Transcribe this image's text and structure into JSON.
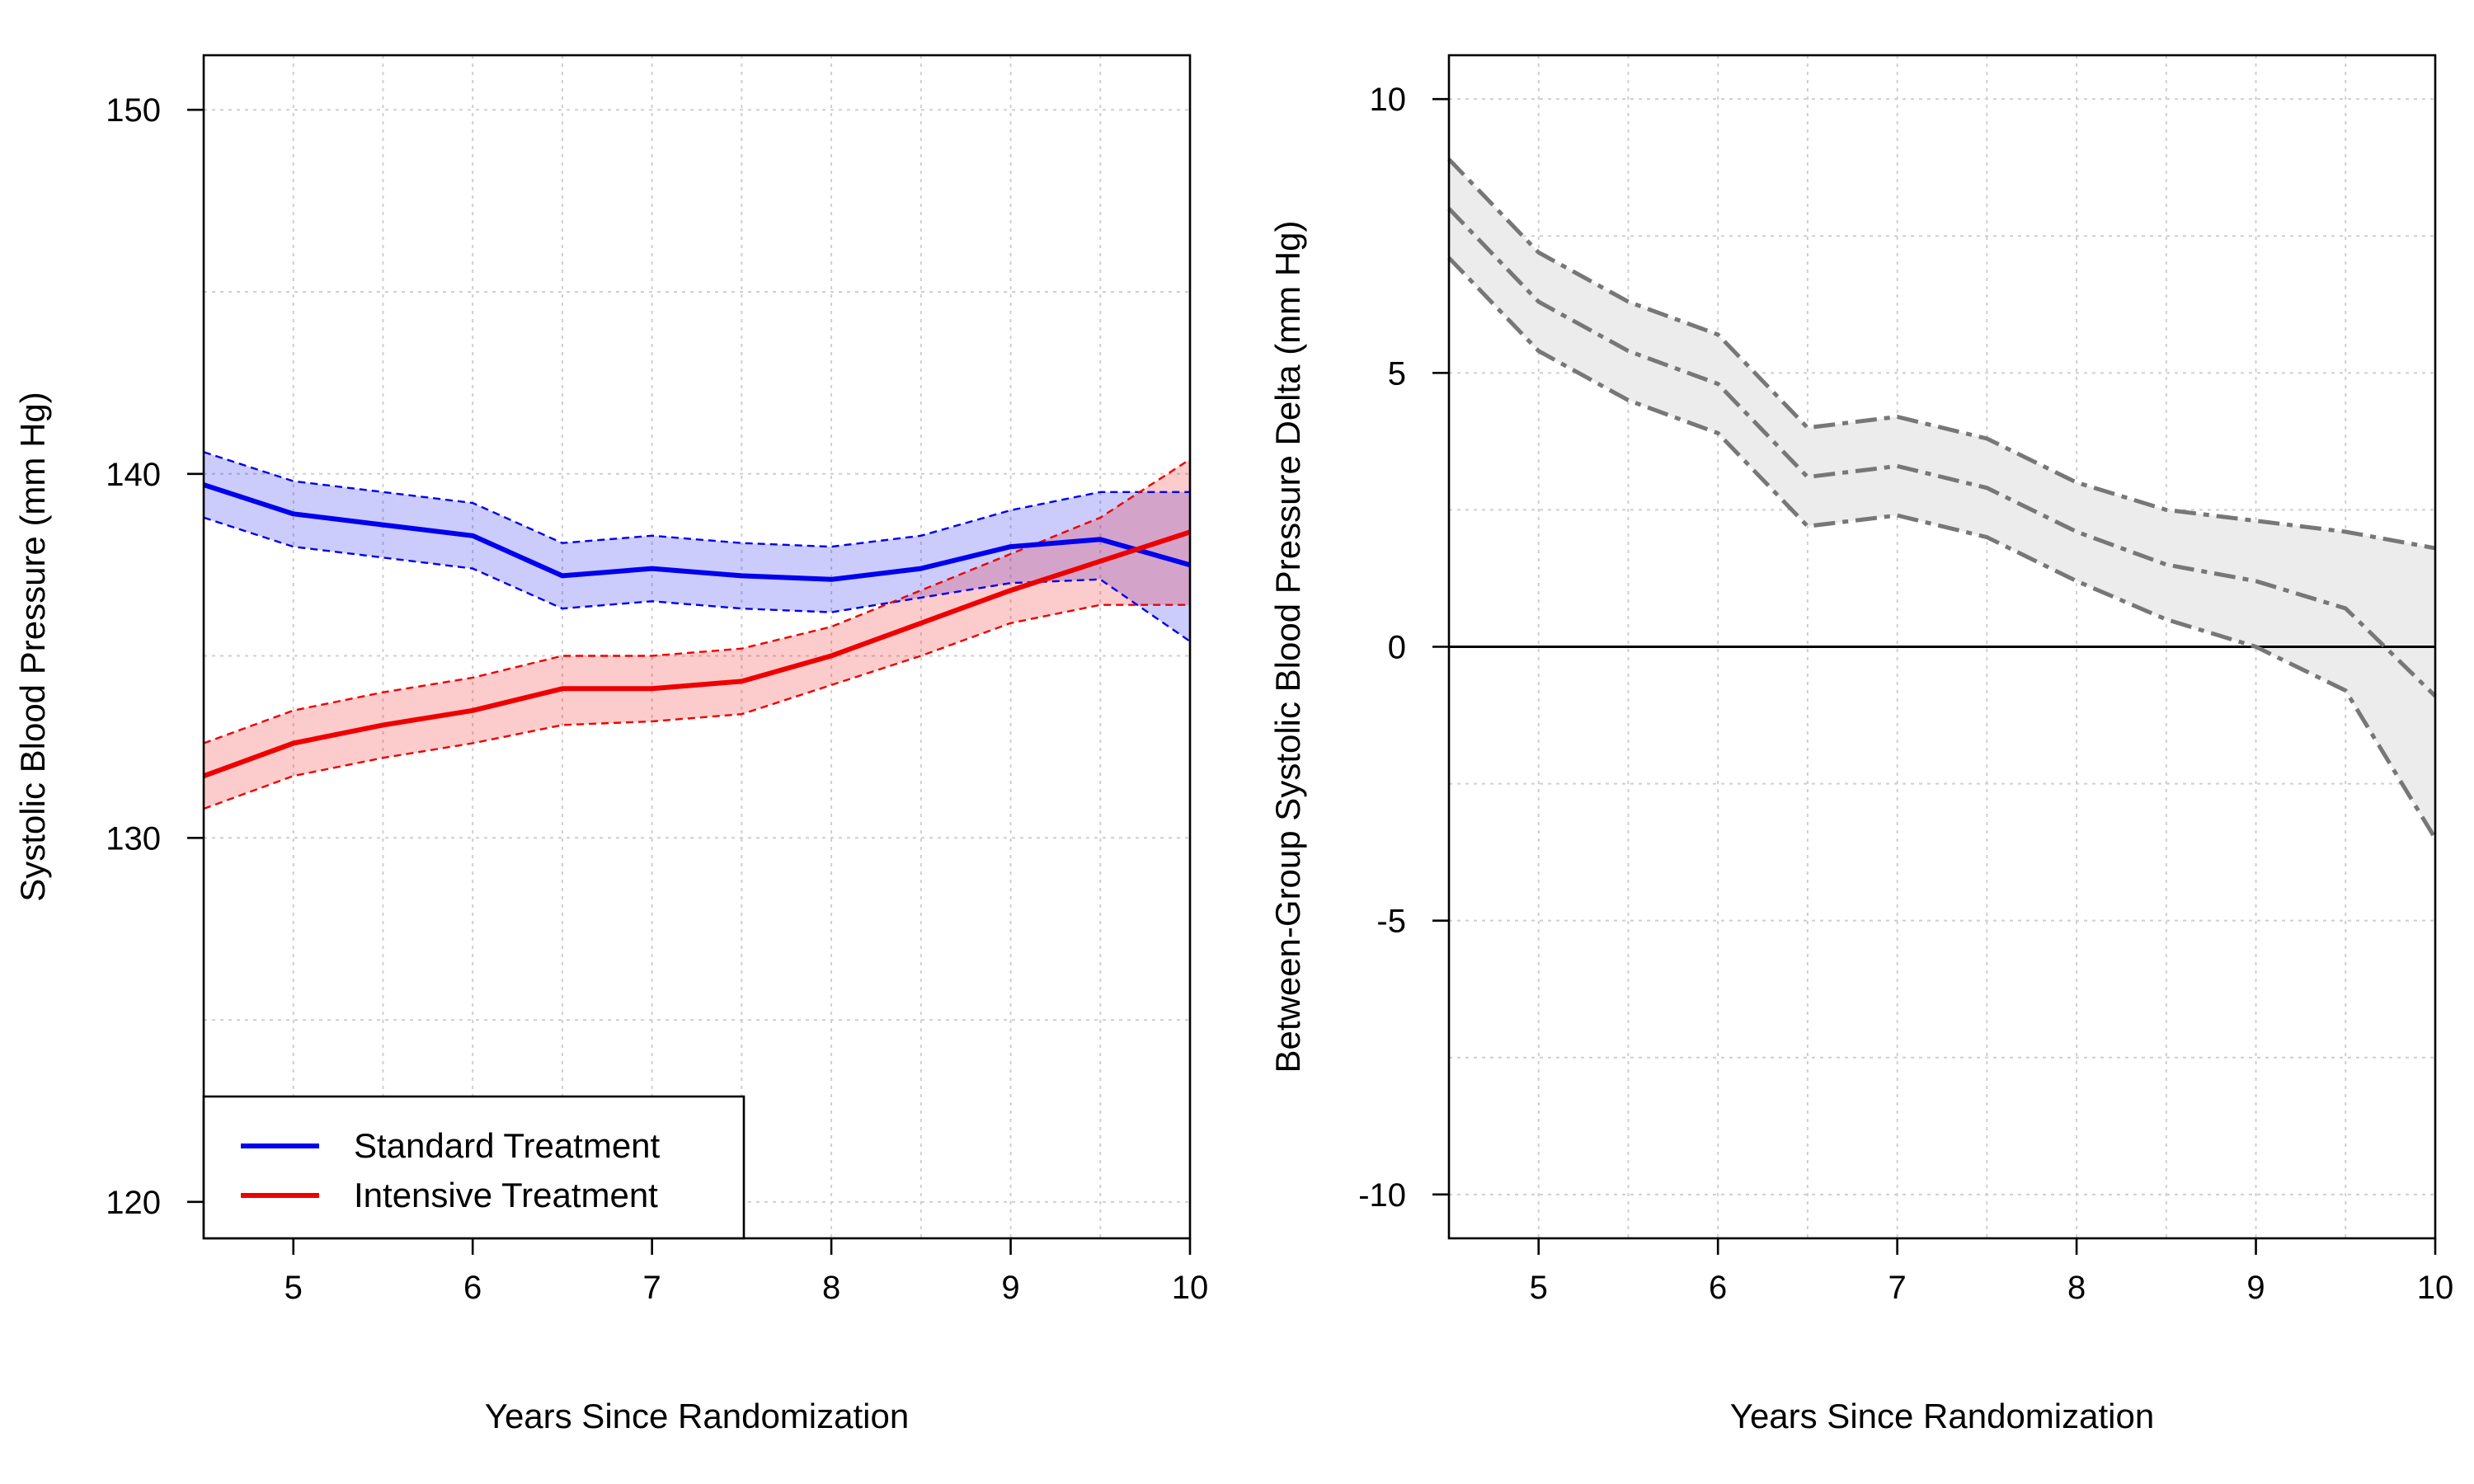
{
  "chart_data": [
    {
      "type": "line",
      "xlabel": "Years Since Randomization",
      "ylabel": "Systolic Blood Pressure (mm Hg)",
      "xlim": [
        4.5,
        10
      ],
      "ylim": [
        119,
        151.5
      ],
      "xticks": [
        5,
        6,
        7,
        8,
        9,
        10
      ],
      "xtick_labels": [
        "5",
        "6",
        "7",
        "8",
        "9",
        "10"
      ],
      "yticks": [
        120,
        130,
        140,
        150
      ],
      "ytick_labels": [
        "120",
        "130",
        "140",
        "150"
      ],
      "grid": true,
      "legend_position": "bottom-left",
      "x": [
        4.5,
        5.0,
        5.5,
        6.0,
        6.5,
        7.0,
        7.5,
        8.0,
        8.5,
        9.0,
        9.5,
        10.0
      ],
      "series": [
        {
          "name": "Standard Treatment",
          "color": "#0000ee",
          "band_color": "#c8c8f8",
          "values": [
            139.7,
            138.9,
            138.6,
            138.3,
            137.2,
            137.4,
            137.2,
            137.1,
            137.4,
            138.0,
            138.2,
            137.5
          ],
          "lower": [
            138.8,
            138.0,
            137.7,
            137.4,
            136.3,
            136.5,
            136.3,
            136.2,
            136.6,
            137.0,
            137.1,
            135.4
          ],
          "upper": [
            140.6,
            139.8,
            139.5,
            139.2,
            138.1,
            138.3,
            138.1,
            138.0,
            138.3,
            139.0,
            139.5,
            139.5
          ]
        },
        {
          "name": "Intensive Treatment",
          "color": "#ee0000",
          "band_color": "#f8c8c8",
          "values": [
            131.7,
            132.6,
            133.1,
            133.5,
            134.1,
            134.1,
            134.3,
            135.0,
            135.9,
            136.8,
            137.6,
            138.4
          ],
          "lower": [
            130.8,
            131.7,
            132.2,
            132.6,
            133.1,
            133.2,
            133.4,
            134.2,
            135.0,
            135.9,
            136.4,
            136.4
          ],
          "upper": [
            132.6,
            133.5,
            134.0,
            134.4,
            135.0,
            135.0,
            135.2,
            135.8,
            136.8,
            137.8,
            138.8,
            140.4
          ]
        }
      ]
    },
    {
      "type": "line",
      "xlabel": "Years Since Randomization",
      "ylabel": "Between-Group Systolic Blood Pressure Delta (mm Hg)",
      "xlim": [
        4.5,
        10
      ],
      "ylim": [
        -10.8,
        10.8
      ],
      "xticks": [
        5,
        6,
        7,
        8,
        9,
        10
      ],
      "xtick_labels": [
        "5",
        "6",
        "7",
        "8",
        "9",
        "10"
      ],
      "yticks": [
        -10,
        -5,
        0,
        5,
        10
      ],
      "ytick_labels": [
        "-10",
        "-5",
        "0",
        "5",
        "10"
      ],
      "grid": true,
      "reference_line": 0,
      "x": [
        4.5,
        5.0,
        5.5,
        6.0,
        6.5,
        7.0,
        7.5,
        8.0,
        8.5,
        9.0,
        9.5,
        10.0
      ],
      "line_color": "#777777",
      "band_color": "#ececec",
      "values": [
        8.0,
        6.3,
        5.4,
        4.8,
        3.1,
        3.3,
        2.9,
        2.1,
        1.5,
        1.2,
        0.7,
        -0.9
      ],
      "lower": [
        7.1,
        5.4,
        4.5,
        3.9,
        2.2,
        2.4,
        2.0,
        1.2,
        0.5,
        0.0,
        -0.8,
        -3.5
      ],
      "upper": [
        8.9,
        7.2,
        6.3,
        5.7,
        4.0,
        4.2,
        3.8,
        3.0,
        2.5,
        2.3,
        2.1,
        1.8
      ]
    }
  ]
}
